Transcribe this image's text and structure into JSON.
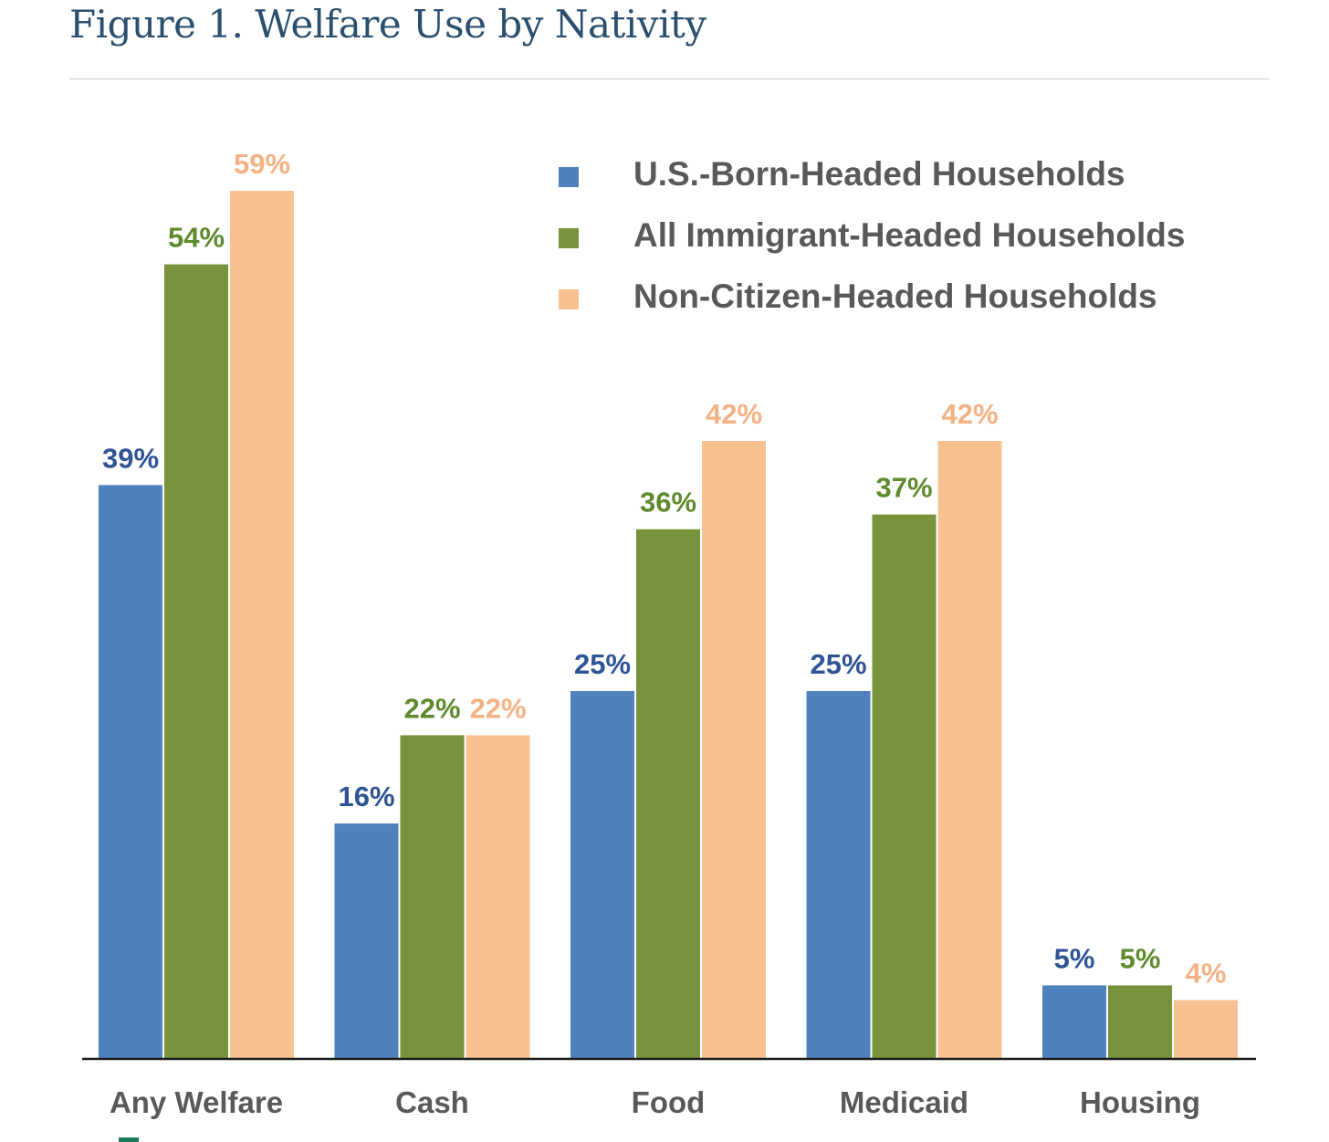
{
  "chart_data": {
    "type": "bar",
    "title": "Figure 1. Welfare Use by Nativity",
    "categories": [
      "Any Welfare",
      "Cash",
      "Food",
      "Medicaid",
      "Housing"
    ],
    "series": [
      {
        "name": "U.S.-Born-Headed Households",
        "color": "#4f81bd",
        "values": [
          39,
          16,
          25,
          25,
          5
        ],
        "labels": [
          "39%",
          "16%",
          "25%",
          "25%",
          "5%"
        ]
      },
      {
        "name": "All Immigrant-Headed Households",
        "color": "#77933c",
        "values": [
          54,
          22,
          36,
          37,
          5
        ],
        "labels": [
          "54%",
          "22%",
          "36%",
          "37%",
          "5%"
        ]
      },
      {
        "name": "Non-Citizen-Headed Households",
        "color": "#f8c190",
        "values": [
          59,
          22,
          42,
          42,
          4
        ],
        "labels": [
          "59%",
          "22%",
          "42%",
          "42%",
          "4%"
        ]
      }
    ],
    "label_colors": [
      "#2f5496",
      "#5f8a2d",
      "#f4b183"
    ],
    "xlabel": "",
    "ylabel": "",
    "ylim": [
      0,
      60
    ],
    "grid": false,
    "legend": "top-right"
  }
}
